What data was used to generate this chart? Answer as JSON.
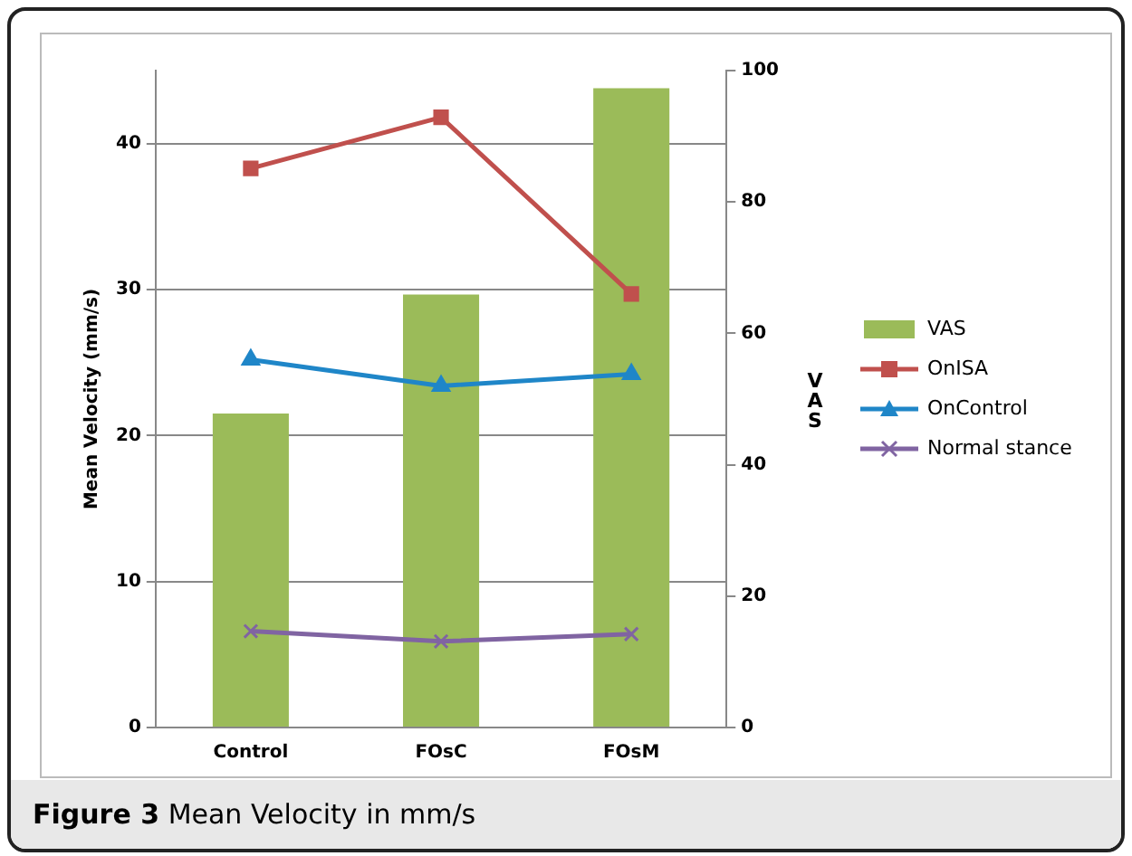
{
  "chart_data": {
    "type": "bar",
    "categories": [
      "Control",
      "FOsC",
      "FOsM"
    ],
    "ylabel": "Mean Velocity (mm/s)",
    "y2label": "VAS",
    "ylim": [
      0,
      45
    ],
    "yticks": [
      0,
      10,
      20,
      30,
      40
    ],
    "y2lim": [
      0,
      100
    ],
    "y2ticks": [
      0,
      20,
      40,
      60,
      80,
      100
    ],
    "grid": "y",
    "legend": "right",
    "annotations": [
      "Figure 3",
      "Mean Velocity in mm/s"
    ],
    "series": [
      {
        "name": "VAS",
        "type": "bar",
        "axis": "y2",
        "color": "#9bbb59",
        "values": [
          47.8,
          65.9,
          97.3
        ]
      },
      {
        "name": "OnISA",
        "type": "line",
        "axis": "y",
        "color": "#c0504d",
        "marker": "square",
        "values": [
          38.3,
          41.8,
          29.7
        ]
      },
      {
        "name": "OnControl",
        "type": "line",
        "axis": "y",
        "color": "#1f86c8",
        "marker": "triangle",
        "values": [
          25.2,
          23.4,
          24.2
        ]
      },
      {
        "name": "Normal stance",
        "type": "line",
        "axis": "y",
        "color": "#8064a2",
        "marker": "cross",
        "values": [
          6.6,
          5.9,
          6.4
        ]
      }
    ]
  }
}
